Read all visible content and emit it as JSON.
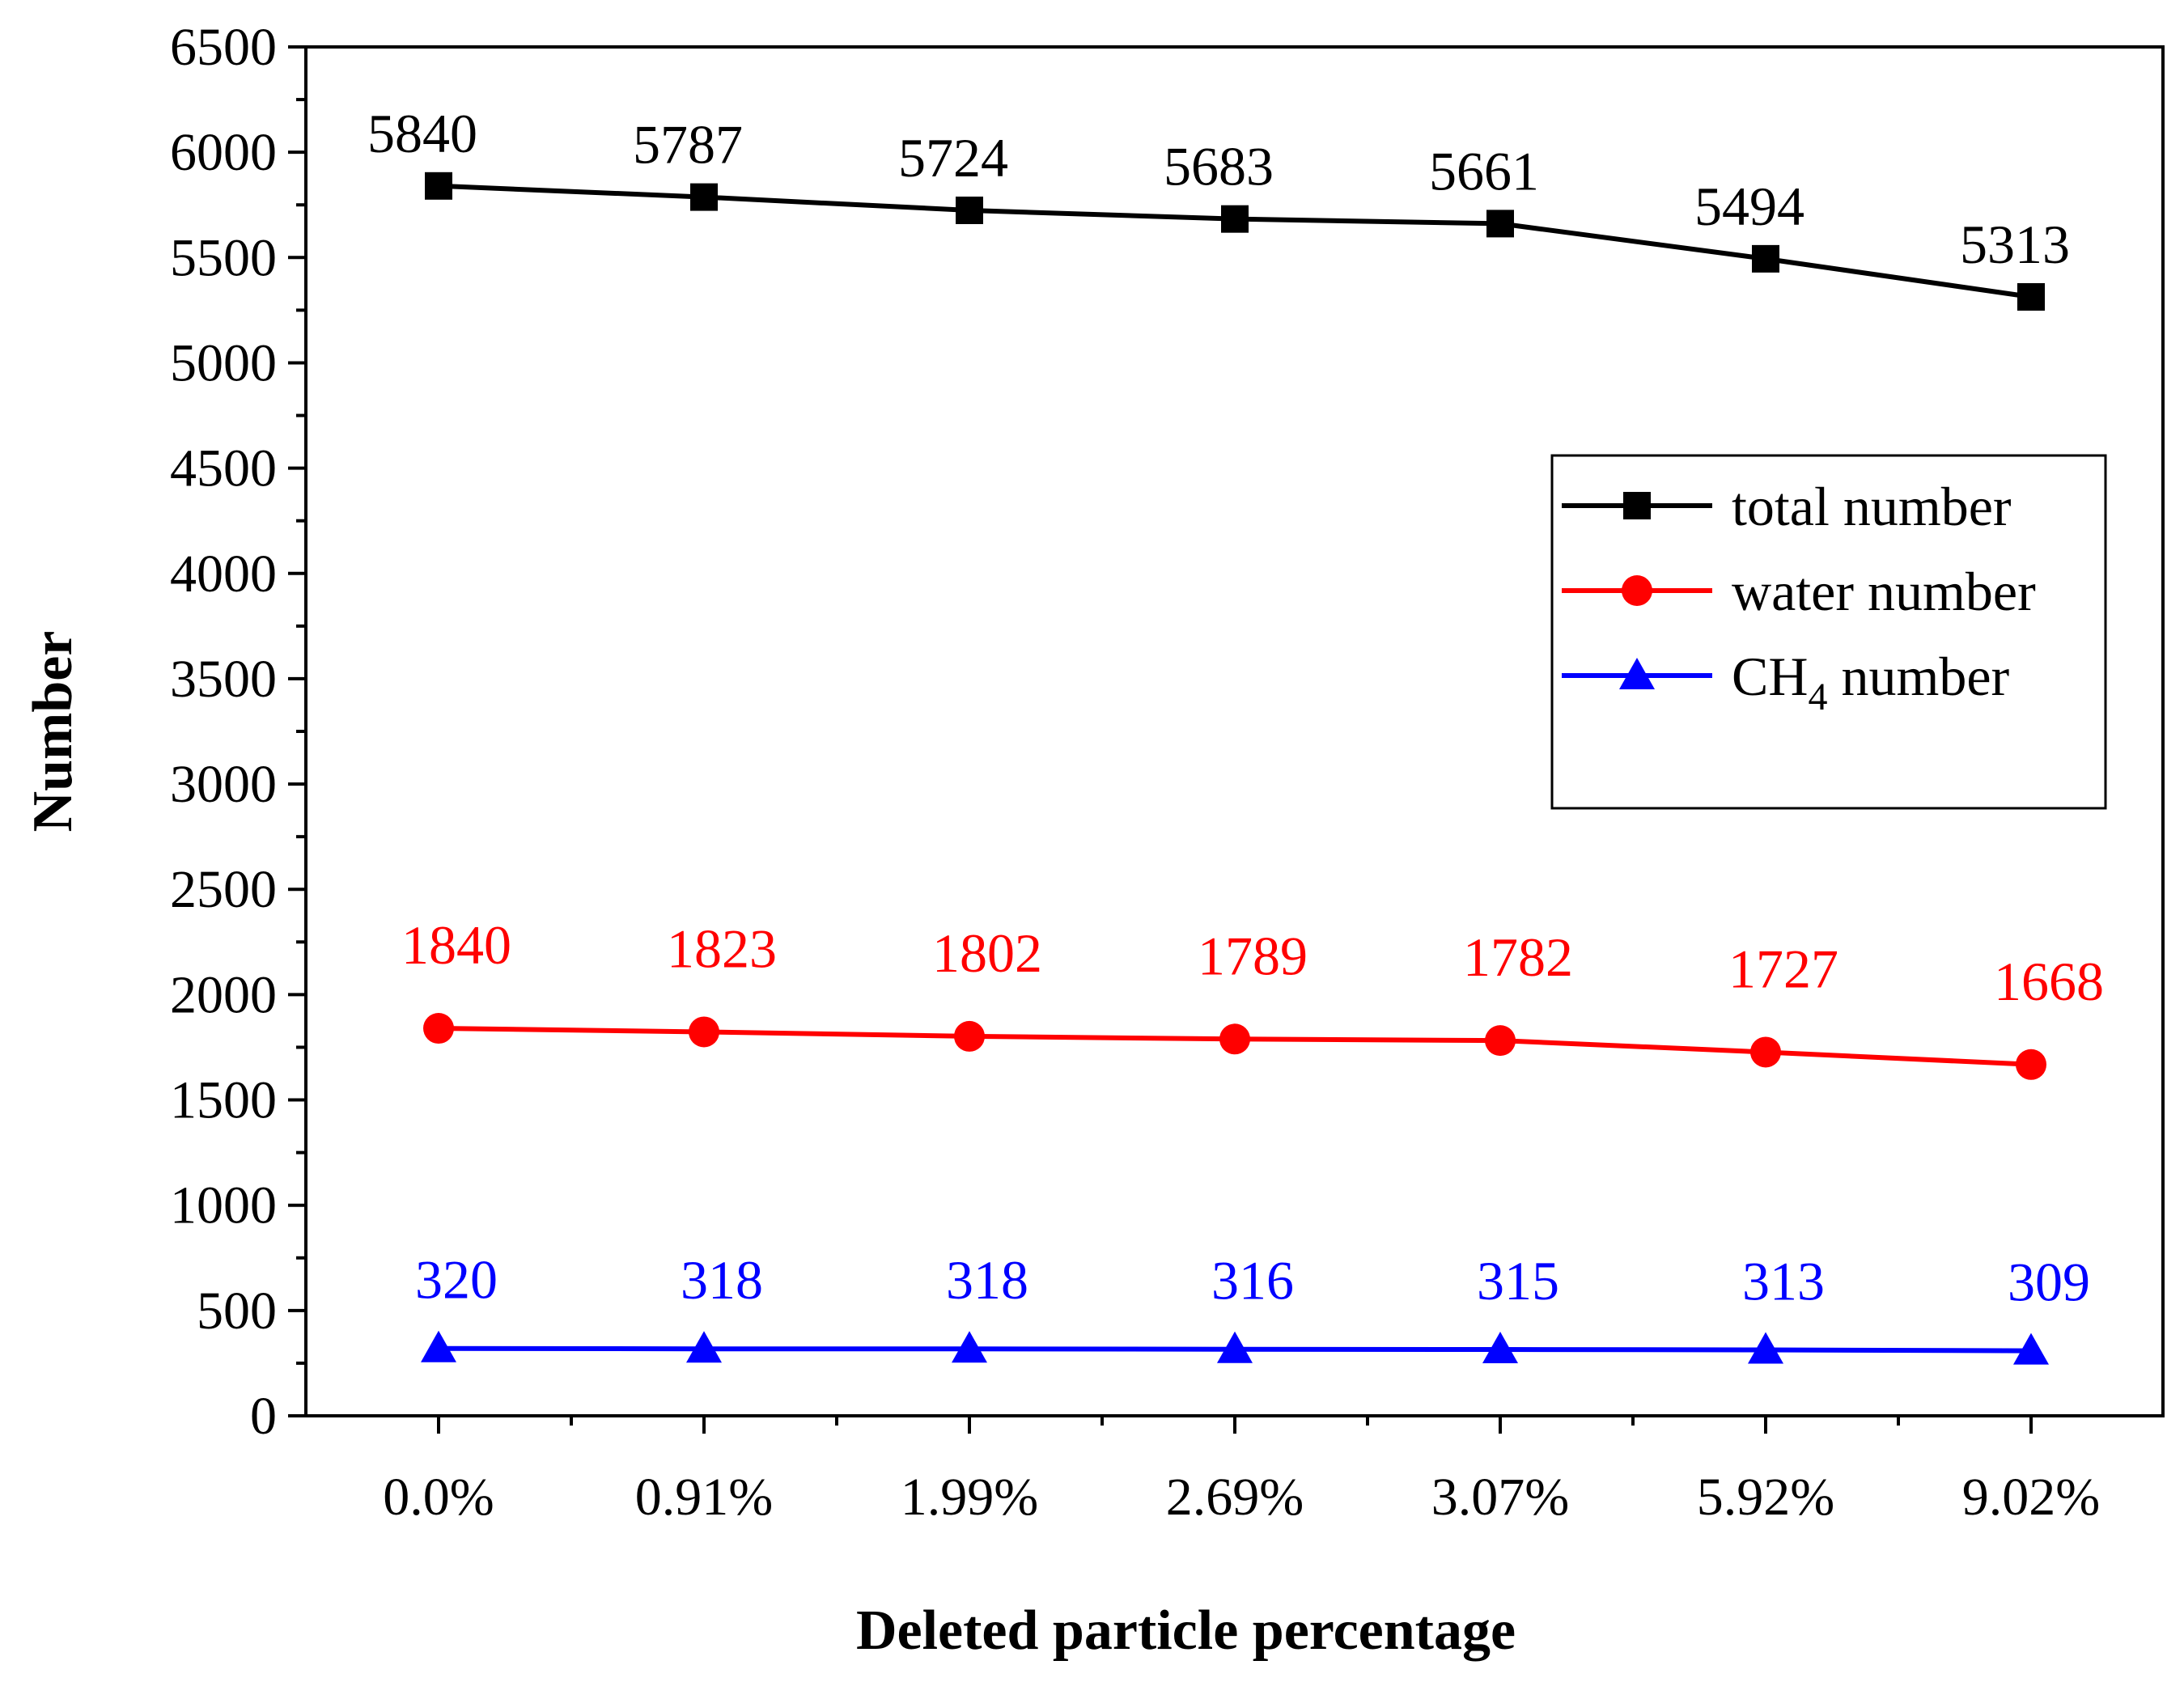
{
  "chart_data": {
    "type": "line",
    "title": "",
    "xlabel": "Deleted particle percentage",
    "ylabel": "Number",
    "categories": [
      "0.0%",
      "0.91%",
      "1.99%",
      "2.69%",
      "3.07%",
      "5.92%",
      "9.02%"
    ],
    "ylim": [
      0,
      6500
    ],
    "yticks": [
      0,
      500,
      1000,
      1500,
      2000,
      2500,
      3000,
      3500,
      4000,
      4500,
      5000,
      5500,
      6000,
      6500
    ],
    "grid": false,
    "legend_position": "right",
    "series": [
      {
        "name": "total number",
        "legend_label": "total number",
        "color": "#000000",
        "marker": "square",
        "values": [
          5840,
          5787,
          5724,
          5683,
          5661,
          5494,
          5313
        ]
      },
      {
        "name": "water number",
        "legend_label": "water number",
        "color": "#ff0000",
        "marker": "circle",
        "values": [
          1840,
          1823,
          1802,
          1789,
          1782,
          1727,
          1668
        ]
      },
      {
        "name": "CH4 number",
        "legend_prefix": "CH",
        "legend_sub": "4",
        "legend_suffix": " number",
        "color": "#0000ff",
        "marker": "triangle",
        "values": [
          320,
          318,
          318,
          316,
          315,
          313,
          309
        ]
      }
    ]
  }
}
